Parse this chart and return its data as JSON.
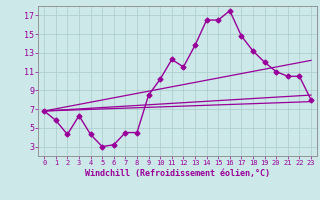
{
  "bg_color": "#cce8e8",
  "line_color": "#990099",
  "grid_color": "#aacccc",
  "xlabel": "Windchill (Refroidissement éolien,°C)",
  "xlim": [
    -0.5,
    23.5
  ],
  "ylim": [
    2.0,
    18.0
  ],
  "xticks": [
    0,
    1,
    2,
    3,
    4,
    5,
    6,
    7,
    8,
    9,
    10,
    11,
    12,
    13,
    14,
    15,
    16,
    17,
    18,
    19,
    20,
    21,
    22,
    23
  ],
  "yticks": [
    3,
    5,
    7,
    9,
    11,
    13,
    15,
    17
  ],
  "line1_x": [
    0,
    1,
    2,
    3,
    4,
    5,
    6,
    7,
    8,
    9,
    10,
    11,
    12,
    13,
    14,
    15,
    16,
    17,
    18,
    19,
    20,
    21,
    22,
    23
  ],
  "line1_y": [
    6.8,
    5.8,
    4.3,
    6.3,
    4.3,
    3.0,
    3.2,
    4.5,
    4.5,
    8.5,
    10.2,
    12.3,
    11.5,
    13.8,
    16.5,
    16.5,
    17.5,
    14.8,
    13.2,
    12.0,
    11.0,
    10.5,
    10.5,
    8.0
  ],
  "line2_x": [
    0,
    23
  ],
  "line2_y": [
    6.8,
    12.2
  ],
  "line3_x": [
    0,
    23
  ],
  "line3_y": [
    6.8,
    8.5
  ],
  "line4_x": [
    0,
    23
  ],
  "line4_y": [
    6.8,
    7.8
  ],
  "markersize": 2.5,
  "lw_main": 1.0,
  "lw_trend": 0.9,
  "xtick_fontsize": 5,
  "ytick_fontsize": 6,
  "xlabel_fontsize": 6
}
